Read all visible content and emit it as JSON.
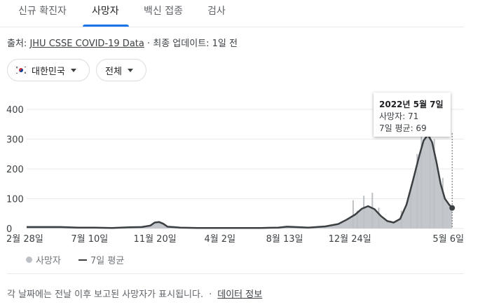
{
  "tabs": [
    {
      "label": "신규 확진자"
    },
    {
      "label": "사망자"
    },
    {
      "label": "백신 접종"
    },
    {
      "label": "검사"
    }
  ],
  "active_tab": "사망자",
  "source": {
    "prefix": "출처: ",
    "link": "JHU CSSE COVID-19 Data",
    "suffix": " · 최종 업데이트: 1일 전"
  },
  "filters": {
    "region": "대한민국",
    "region_icon": "korea-flag-icon",
    "scope": "전체"
  },
  "tooltip": {
    "date": "2022년 5월 7일",
    "deaths": "사망자: 71",
    "avg": "7일 평균: 69"
  },
  "legend": {
    "bars": "사망자",
    "line": "7일 평균"
  },
  "footer": {
    "note": "각 날짜에는 전날 이후 보고된 사망자가 표시됩니다.",
    "sep": "·",
    "link": "데이터 정보"
  },
  "colors": {
    "bars": "#bdc1c6",
    "area": "#c3c6ca",
    "line": "#3c4043",
    "tab_active": "#1a73e8"
  },
  "chart_data": {
    "type": "area",
    "ylim": [
      0,
      400
    ],
    "y_ticks": [
      "0",
      "100",
      "200",
      "300",
      "400"
    ],
    "x_ticks": [
      "2월 28일",
      "7월 10일",
      "11월 20일",
      "4월 2일",
      "8월 13일",
      "12월 24일",
      "5월 6일"
    ],
    "x_tick_pos": [
      0,
      0.1475,
      0.3007,
      0.4528,
      0.6044,
      0.7572,
      0.9944
    ],
    "series": [
      {
        "name": "7일 평균",
        "points": [
          [
            0,
            5
          ],
          [
            0.04,
            5
          ],
          [
            0.08,
            5
          ],
          [
            0.12,
            3
          ],
          [
            0.16,
            3
          ],
          [
            0.2,
            2
          ],
          [
            0.24,
            4
          ],
          [
            0.27,
            5
          ],
          [
            0.29,
            10
          ],
          [
            0.3,
            20
          ],
          [
            0.31,
            22
          ],
          [
            0.32,
            16
          ],
          [
            0.33,
            6
          ],
          [
            0.36,
            3
          ],
          [
            0.4,
            2
          ],
          [
            0.45,
            2
          ],
          [
            0.5,
            2
          ],
          [
            0.55,
            2
          ],
          [
            0.59,
            3
          ],
          [
            0.61,
            6
          ],
          [
            0.63,
            5
          ],
          [
            0.66,
            3
          ],
          [
            0.7,
            7
          ],
          [
            0.73,
            15
          ],
          [
            0.75,
            30
          ],
          [
            0.77,
            47
          ],
          [
            0.785,
            66
          ],
          [
            0.8,
            75
          ],
          [
            0.815,
            65
          ],
          [
            0.83,
            42
          ],
          [
            0.845,
            25
          ],
          [
            0.86,
            20
          ],
          [
            0.875,
            32
          ],
          [
            0.89,
            80
          ],
          [
            0.905,
            160
          ],
          [
            0.92,
            245
          ],
          [
            0.93,
            295
          ],
          [
            0.94,
            315
          ],
          [
            0.95,
            290
          ],
          [
            0.96,
            225
          ],
          [
            0.97,
            150
          ],
          [
            0.98,
            100
          ],
          [
            0.99,
            80
          ],
          [
            0.997,
            69
          ]
        ]
      }
    ],
    "highlight": {
      "date": "2022년 5월 7일",
      "deaths": 71,
      "avg": 69
    }
  }
}
